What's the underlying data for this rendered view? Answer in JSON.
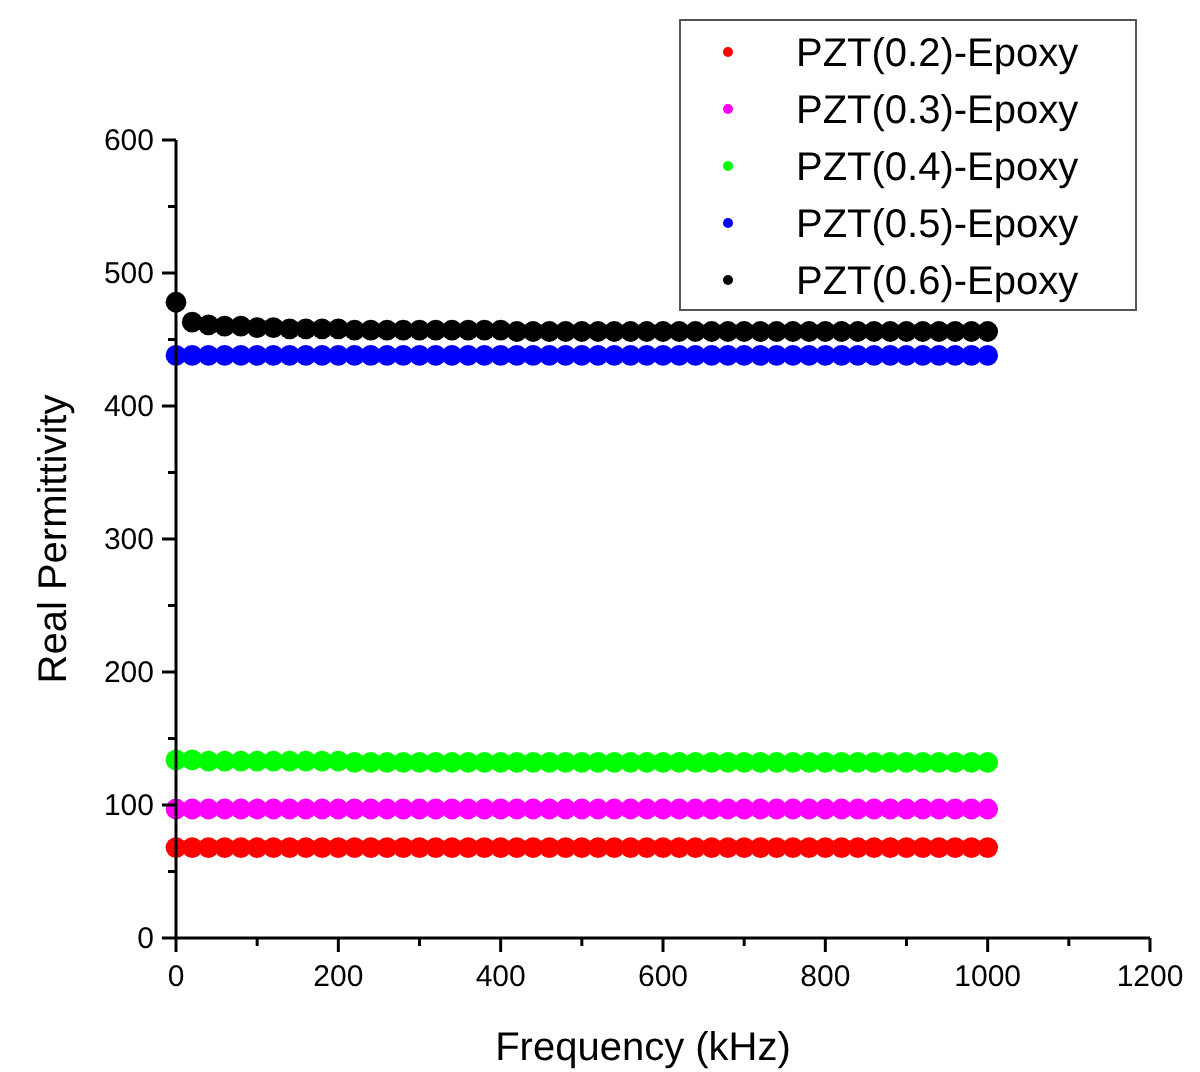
{
  "chart_data": {
    "type": "scatter",
    "xlabel": "Frequency (kHz)",
    "ylabel": "Real Permittivity",
    "x": [
      0,
      20,
      40,
      60,
      80,
      100,
      120,
      140,
      160,
      180,
      200,
      220,
      240,
      260,
      280,
      300,
      320,
      340,
      360,
      380,
      400,
      420,
      440,
      460,
      480,
      500,
      520,
      540,
      560,
      580,
      600,
      620,
      640,
      660,
      680,
      700,
      720,
      740,
      760,
      780,
      800,
      820,
      840,
      860,
      880,
      900,
      920,
      940,
      960,
      980,
      1000
    ],
    "xlim": [
      0,
      1200
    ],
    "ylim": [
      0,
      600
    ],
    "xticks": [
      0,
      {
        "value": 100,
        "label": null
      },
      200,
      {
        "value": 300,
        "label": null
      },
      400,
      {
        "value": 500,
        "label": null
      },
      600,
      {
        "value": 700,
        "label": null
      },
      800,
      {
        "value": 900,
        "label": null
      },
      1000,
      {
        "value": 1100,
        "label": null
      },
      1200
    ],
    "yticks": [
      0,
      {
        "value": 50,
        "label": null
      },
      100,
      {
        "value": 150,
        "label": null
      },
      200,
      {
        "value": 250,
        "label": null
      },
      300,
      {
        "value": 350,
        "label": null
      },
      400,
      {
        "value": 450,
        "label": null
      },
      500,
      {
        "value": 550,
        "label": null
      },
      600
    ],
    "marker": "circle",
    "legend": "top right",
    "grid": false,
    "series": [
      {
        "name": "PZT(0.2)-Epoxy",
        "color": "#ff0000",
        "values": [
          68,
          68,
          68,
          68,
          68,
          68,
          68,
          68,
          68,
          68,
          68,
          68,
          68,
          68,
          68,
          68,
          68,
          68,
          68,
          68,
          68,
          68,
          68,
          68,
          68,
          68,
          68,
          68,
          68,
          68,
          68,
          68,
          68,
          68,
          68,
          68,
          68,
          68,
          68,
          68,
          68,
          68,
          68,
          68,
          68,
          68,
          68,
          68,
          68,
          68,
          68
        ]
      },
      {
        "name": "PZT(0.3)-Epoxy",
        "color": "#ff00ff",
        "values": [
          97,
          97,
          97,
          97,
          97,
          97,
          97,
          97,
          97,
          97,
          97,
          97,
          97,
          97,
          97,
          97,
          97,
          97,
          97,
          97,
          97,
          97,
          97,
          97,
          97,
          97,
          97,
          97,
          97,
          97,
          97,
          97,
          97,
          97,
          97,
          97,
          97,
          97,
          97,
          97,
          97,
          97,
          97,
          97,
          97,
          97,
          97,
          97,
          97,
          97,
          97
        ]
      },
      {
        "name": "PZT(0.4)-Epoxy",
        "color": "#00ff00",
        "values": [
          134,
          134,
          133,
          133,
          133,
          133,
          133,
          133,
          133,
          133,
          133,
          132,
          132,
          132,
          132,
          132,
          132,
          132,
          132,
          132,
          132,
          132,
          132,
          132,
          132,
          132,
          132,
          132,
          132,
          132,
          132,
          132,
          132,
          132,
          132,
          132,
          132,
          132,
          132,
          132,
          132,
          132,
          132,
          132,
          132,
          132,
          132,
          132,
          132,
          132,
          132
        ]
      },
      {
        "name": "PZT(0.5)-Epoxy",
        "color": "#0000ff",
        "values": [
          438,
          438,
          438,
          438,
          438,
          438,
          438,
          438,
          438,
          438,
          438,
          438,
          438,
          438,
          438,
          438,
          438,
          438,
          438,
          438,
          438,
          438,
          438,
          438,
          438,
          438,
          438,
          438,
          438,
          438,
          438,
          438,
          438,
          438,
          438,
          438,
          438,
          438,
          438,
          438,
          438,
          438,
          438,
          438,
          438,
          438,
          438,
          438,
          438,
          438,
          438
        ]
      },
      {
        "name": "PZT(0.6)-Epoxy",
        "color": "#000000",
        "values": [
          478,
          463,
          461,
          460,
          460,
          459,
          459,
          458,
          458,
          458,
          458,
          457,
          457,
          457,
          457,
          457,
          457,
          457,
          457,
          457,
          457,
          456,
          456,
          456,
          456,
          456,
          456,
          456,
          456,
          456,
          456,
          456,
          456,
          456,
          456,
          456,
          456,
          456,
          456,
          456,
          456,
          456,
          456,
          456,
          456,
          456,
          456,
          456,
          456,
          456,
          456
        ]
      }
    ]
  }
}
